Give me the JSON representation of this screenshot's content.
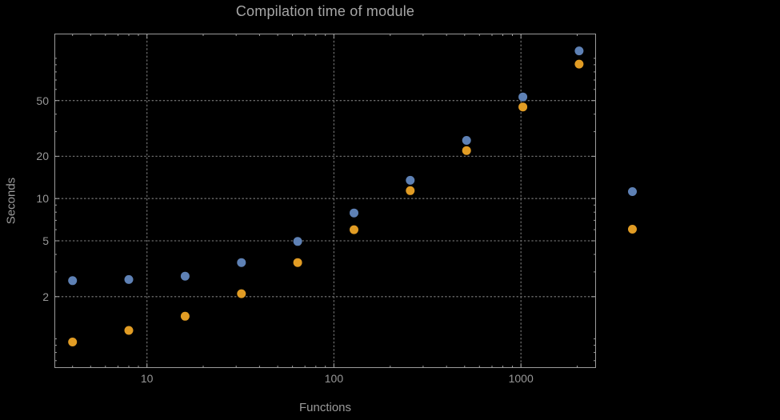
{
  "chart_data": {
    "type": "scatter",
    "title": "Compilation time of module",
    "xlabel": "Functions",
    "ylabel": "Seconds",
    "xscale": "log",
    "yscale": "log",
    "xlim": [
      3.2,
      2520
    ],
    "ylim": [
      0.62,
      150
    ],
    "grid": true,
    "x": [
      4,
      8,
      16,
      32,
      64,
      128,
      256,
      512,
      1024,
      2048
    ],
    "series": [
      {
        "name": "series-1-blue",
        "color": "#5E81B5",
        "values": [
          2.6,
          2.65,
          2.8,
          3.5,
          4.95,
          7.9,
          13.5,
          26,
          53,
          113
        ]
      },
      {
        "name": "series-2-orange",
        "color": "#E19C24",
        "values": [
          0.95,
          1.15,
          1.45,
          2.1,
          3.5,
          6.0,
          11.4,
          22,
          45,
          91
        ]
      }
    ],
    "x_ticks": [
      {
        "value": 10,
        "label": "10"
      },
      {
        "value": 100,
        "label": "100"
      },
      {
        "value": 1000,
        "label": "1000"
      }
    ],
    "y_ticks": [
      {
        "value": 2,
        "label": "2"
      },
      {
        "value": 5,
        "label": "5"
      },
      {
        "value": 10,
        "label": "10"
      },
      {
        "value": 20,
        "label": "20"
      },
      {
        "value": 50,
        "label": "50"
      }
    ],
    "legend": {
      "position": "right-outside",
      "entries": [
        {
          "color": "#5E81B5"
        },
        {
          "color": "#E19C24"
        }
      ]
    },
    "style": {
      "background": "#000000",
      "frame_color": "#9b9b9b",
      "grid_color": "#6b6b6b",
      "text_color": "#9a9a9a"
    }
  }
}
